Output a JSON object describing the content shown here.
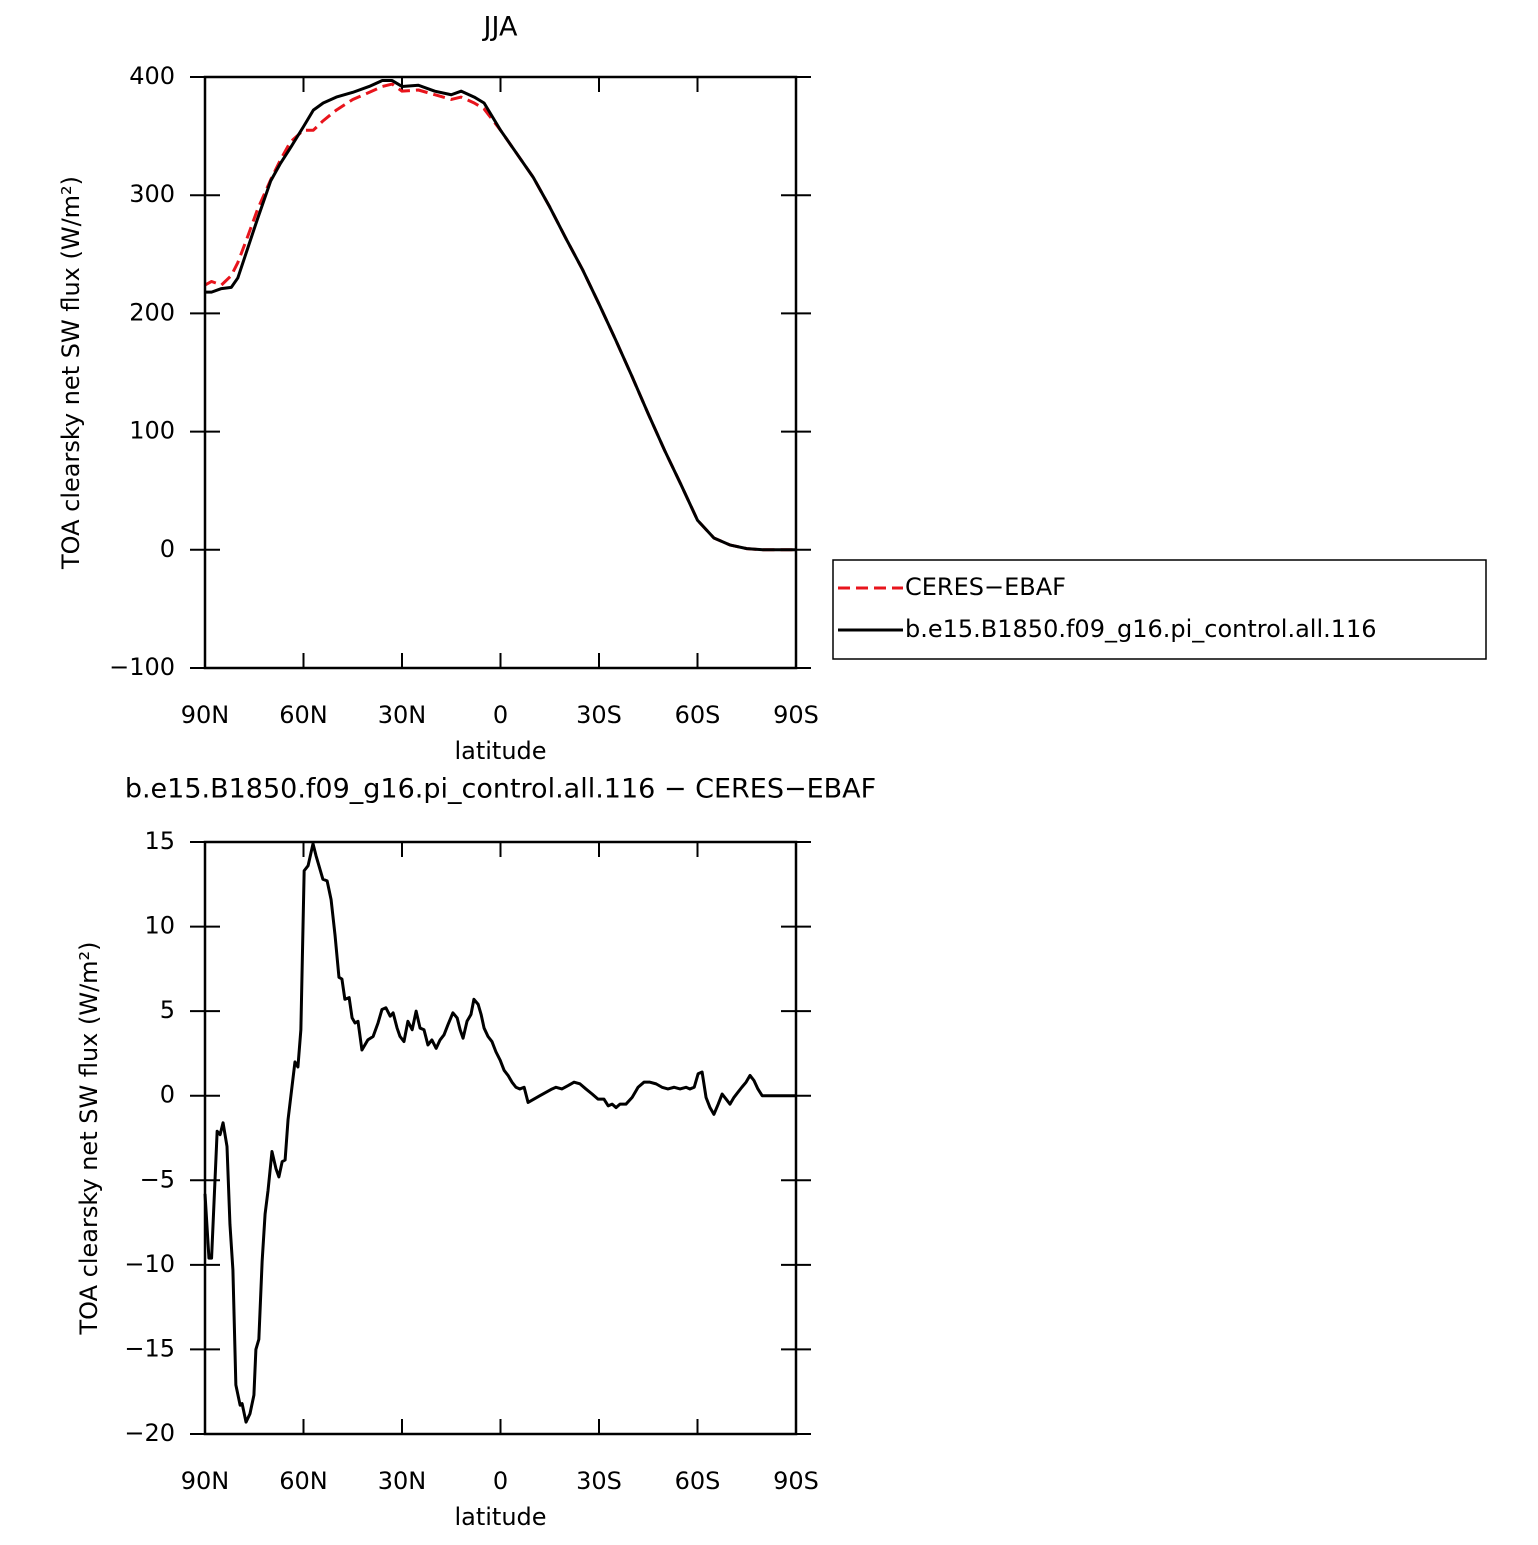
{
  "chart_data": [
    {
      "type": "line",
      "title": "JJA",
      "xlabel": "latitude",
      "ylabel": "TOA clearsky net SW flux (W/m²)",
      "x": [
        90,
        88,
        85,
        82,
        80,
        77,
        74,
        70,
        67,
        64,
        60,
        57,
        54,
        50,
        45,
        40,
        36,
        33,
        30,
        25,
        20,
        15,
        12,
        8,
        5,
        0,
        -5,
        -10,
        -15,
        -20,
        -25,
        -30,
        -35,
        -40,
        -45,
        -50,
        -55,
        -60,
        -65,
        -70,
        -75,
        -80,
        -85,
        -90
      ],
      "series": [
        {
          "name": "CERES−EBAF",
          "color": "#e8141c",
          "dash": true,
          "values": [
            224,
            227,
            224,
            232,
            243,
            265,
            288,
            313,
            330,
            345,
            355,
            355,
            363,
            372,
            381,
            387,
            392,
            394,
            388,
            389,
            385,
            381,
            383,
            378,
            373,
            355,
            335,
            315,
            290,
            263,
            237,
            208,
            178,
            147,
            115,
            84,
            55,
            25,
            10,
            4,
            1,
            0,
            0,
            0
          ]
        },
        {
          "name": "b.e15.B1850.f09_g16.pi_control.all.116",
          "color": "#000000",
          "dash": false,
          "values": [
            218,
            218,
            221,
            222,
            230,
            255,
            280,
            312,
            327,
            340,
            358,
            372,
            378,
            383,
            387,
            392,
            397,
            397,
            392,
            393,
            388,
            385,
            388,
            383,
            378,
            355,
            335,
            315,
            290,
            263,
            237,
            208,
            178,
            147,
            115,
            84,
            55,
            25,
            10,
            4,
            1,
            0,
            0,
            0
          ]
        }
      ],
      "xlim": [
        90,
        -90
      ],
      "xticks": [
        {
          "value": 90,
          "label": "90N"
        },
        {
          "value": 60,
          "label": "60N"
        },
        {
          "value": 30,
          "label": "30N"
        },
        0,
        {
          "value": -30,
          "label": "30S"
        },
        {
          "value": -60,
          "label": "60S"
        },
        {
          "value": -90,
          "label": "90S"
        }
      ],
      "ylim": [
        -100,
        400
      ],
      "yticks": [
        {
          "value": -100,
          "label": "−100"
        },
        0,
        100,
        200,
        300,
        400
      ],
      "legend": "right"
    },
    {
      "type": "line",
      "title": "b.e15.B1850.f09_g16.pi_control.all.116 − CERES−EBAF",
      "xlabel": "latitude",
      "ylabel": "TOA clearsky net SW flux (W/m²)",
      "x": [
        90,
        88.8,
        88,
        86.3,
        85.4,
        84.5,
        83.3,
        82.4,
        81.5,
        80.6,
        79.3,
        78.7,
        77.5,
        76.3,
        75.1,
        74.5,
        73.6,
        72.6,
        71.7,
        70.8,
        69.6,
        68.4,
        67.5,
        66.5,
        65.6,
        64.7,
        62.6,
        61.7,
        60.8,
        59.8,
        58.6,
        57.1,
        56.2,
        55.3,
        54.1,
        52.8,
        51.6,
        50.4,
        49.2,
        48.3,
        47.4,
        46.1,
        45.2,
        44.3,
        43.4,
        42.2,
        40.4,
        38.8,
        37.3,
        36.1,
        34.9,
        33.6,
        32.7,
        31.5,
        30.6,
        29.4,
        28.2,
        26.9,
        25.7,
        24.5,
        23.3,
        22.1,
        20.9,
        19.6,
        18.4,
        17.2,
        16,
        14.5,
        13.2,
        12.3,
        11.4,
        10.2,
        9,
        8.1,
        6.8,
        5.9,
        5,
        3.8,
        2.6,
        1.4,
        0.1,
        -1.1,
        -2.3,
        -3.5,
        -4.7,
        -5.9,
        -7.2,
        -8.4,
        -12,
        -15.7,
        -16.9,
        -18.7,
        -20.6,
        -22.4,
        -24.2,
        -26,
        -27.9,
        -29.7,
        -31.5,
        -32.8,
        -34,
        -35.2,
        -36.4,
        -38.2,
        -40.1,
        -41.9,
        -43.7,
        -45.5,
        -47.4,
        -49.2,
        -51,
        -52.9,
        -54.7,
        -56.5,
        -57.7,
        -59,
        -60.2,
        -61.4,
        -62.6,
        -63.8,
        -65,
        -66.3,
        -67.5,
        -68.7,
        -69.9,
        -71.1,
        -72.3,
        -73.5,
        -74.8,
        -76,
        -77.2,
        -78.4,
        -79.7,
        -90
      ],
      "values": [
        -5.8,
        -9.6,
        -9.6,
        -2.1,
        -2.3,
        -1.6,
        -3,
        -7.6,
        -10.3,
        -17.1,
        -18.3,
        -18.2,
        -19.3,
        -18.8,
        -17.7,
        -15,
        -14.4,
        -9.8,
        -7,
        -5.6,
        -3.3,
        -4.3,
        -4.8,
        -3.9,
        -3.8,
        -1.4,
        2,
        1.7,
        3.9,
        13.3,
        13.6,
        14.9,
        14.2,
        13.6,
        12.8,
        12.7,
        11.6,
        9.5,
        7,
        6.9,
        5.7,
        5.8,
        4.6,
        4.3,
        4.4,
        2.7,
        3.3,
        3.5,
        4.3,
        5.1,
        5.2,
        4.7,
        4.9,
        4,
        3.5,
        3.2,
        4.4,
        3.9,
        5,
        4,
        3.9,
        3,
        3.3,
        2.8,
        3.3,
        3.6,
        4.2,
        4.9,
        4.6,
        3.9,
        3.4,
        4.4,
        4.8,
        5.7,
        5.4,
        4.8,
        4,
        3.5,
        3.2,
        2.6,
        2.1,
        1.5,
        1.2,
        0.8,
        0.5,
        0.4,
        0.5,
        -0.4,
        0,
        0.4,
        0.5,
        0.4,
        0.6,
        0.8,
        0.7,
        0.4,
        0.1,
        -0.2,
        -0.2,
        -0.6,
        -0.5,
        -0.7,
        -0.5,
        -0.5,
        -0.1,
        0.5,
        0.8,
        0.8,
        0.7,
        0.5,
        0.4,
        0.5,
        0.4,
        0.5,
        0.4,
        0.5,
        1.3,
        1.4,
        -0.1,
        -0.7,
        -1.1,
        -0.5,
        0.1,
        -0.2,
        -0.5,
        -0.1,
        0.2,
        0.5,
        0.8,
        1.2,
        0.9,
        0.4,
        0,
        0
      ],
      "color": "#000000",
      "xlim": [
        90,
        -90
      ],
      "xticks": [
        {
          "value": 90,
          "label": "90N"
        },
        {
          "value": 60,
          "label": "60N"
        },
        {
          "value": 30,
          "label": "30N"
        },
        0,
        {
          "value": -30,
          "label": "30S"
        },
        {
          "value": -60,
          "label": "60S"
        },
        {
          "value": -90,
          "label": "90S"
        }
      ],
      "ylim": [
        -20,
        15
      ],
      "yticks": [
        {
          "value": -20,
          "label": "−20"
        },
        {
          "value": -15,
          "label": "−15"
        },
        {
          "value": -10,
          "label": "−10"
        },
        {
          "value": -5,
          "label": "−5"
        },
        0,
        5,
        10,
        15
      ]
    }
  ]
}
